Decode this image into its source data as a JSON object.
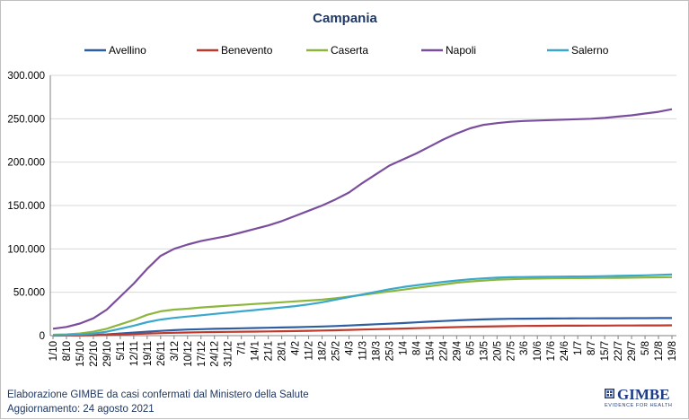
{
  "chart_data": {
    "type": "line",
    "title": "Campania",
    "xlabel": "",
    "ylabel": "",
    "ylim": [
      0,
      300000
    ],
    "y_ticks": [
      "0",
      "50.000",
      "100.000",
      "150.000",
      "200.000",
      "250.000",
      "300.000"
    ],
    "grid": "horizontal",
    "legend_position": "top",
    "categories": [
      "1/10",
      "8/10",
      "15/10",
      "22/10",
      "29/10",
      "5/11",
      "12/11",
      "19/11",
      "26/11",
      "3/12",
      "10/12",
      "17/12",
      "24/12",
      "31/12",
      "7/1",
      "14/1",
      "21/1",
      "28/1",
      "4/2",
      "11/2",
      "18/2",
      "25/2",
      "4/3",
      "11/3",
      "18/3",
      "25/3",
      "1/4",
      "8/4",
      "15/4",
      "22/4",
      "29/4",
      "6/5",
      "13/5",
      "20/5",
      "27/5",
      "3/6",
      "10/6",
      "17/6",
      "24/6",
      "1/7",
      "8/7",
      "15/7",
      "22/7",
      "29/7",
      "5/8",
      "12/8",
      "19/8"
    ],
    "series": [
      {
        "name": "Avellino",
        "color": "#2e5fa3",
        "values": [
          100,
          200,
          400,
          800,
          1500,
          2500,
          3500,
          4500,
          5500,
          6300,
          7000,
          7500,
          7900,
          8200,
          8500,
          8800,
          9100,
          9400,
          9700,
          10100,
          10600,
          11100,
          11700,
          12400,
          13100,
          13800,
          14500,
          15300,
          16100,
          16900,
          17600,
          18200,
          18700,
          19100,
          19400,
          19600,
          19700,
          19800,
          19900,
          19950,
          20000,
          20050,
          20100,
          20150,
          20200,
          20250,
          20300
        ]
      },
      {
        "name": "Benevento",
        "color": "#c0392b",
        "values": [
          50,
          100,
          200,
          400,
          800,
          1300,
          1900,
          2400,
          2900,
          3300,
          3600,
          3900,
          4100,
          4300,
          4500,
          4700,
          4900,
          5100,
          5300,
          5600,
          5900,
          6200,
          6600,
          7000,
          7400,
          7800,
          8200,
          8600,
          9000,
          9400,
          9800,
          10200,
          10500,
          10800,
          11000,
          11200,
          11300,
          11400,
          11450,
          11500,
          11550,
          11600,
          11650,
          11700,
          11750,
          11800,
          11850
        ]
      },
      {
        "name": "Caserta",
        "color": "#8cb63c",
        "values": [
          1000,
          1500,
          2500,
          4500,
          8000,
          13000,
          18000,
          24000,
          28000,
          30000,
          31000,
          32500,
          33500,
          34500,
          35500,
          36500,
          37500,
          38500,
          39500,
          40500,
          41500,
          43000,
          45000,
          47000,
          49000,
          51000,
          53000,
          55000,
          57000,
          59000,
          61000,
          62500,
          63500,
          64500,
          65000,
          65500,
          65800,
          66000,
          66200,
          66300,
          66400,
          66500,
          66600,
          66800,
          67000,
          67200,
          67500
        ]
      },
      {
        "name": "Napoli",
        "color": "#7a4e9c",
        "values": [
          8000,
          10000,
          14000,
          20000,
          30000,
          45000,
          60000,
          77000,
          92000,
          100000,
          105000,
          109000,
          112000,
          115000,
          119000,
          123000,
          127000,
          132000,
          138000,
          144000,
          150000,
          157000,
          165000,
          176000,
          186000,
          196000,
          203000,
          210000,
          218000,
          226000,
          233000,
          239000,
          243000,
          245000,
          246500,
          247500,
          248000,
          248500,
          249000,
          249500,
          250000,
          251000,
          252500,
          254000,
          256000,
          258000,
          261000
        ]
      },
      {
        "name": "Salerno",
        "color": "#3aa8cc",
        "values": [
          300,
          600,
          1200,
          2500,
          4500,
          8000,
          11500,
          15500,
          18500,
          20500,
          22000,
          23500,
          25000,
          26500,
          28000,
          29500,
          31000,
          32500,
          34000,
          36000,
          38500,
          41500,
          44500,
          47500,
          50500,
          53500,
          56000,
          58000,
          60000,
          62000,
          63500,
          65000,
          66000,
          66800,
          67300,
          67600,
          67800,
          68000,
          68100,
          68200,
          68300,
          68600,
          68900,
          69200,
          69500,
          70000,
          70500
        ]
      }
    ]
  },
  "footer": {
    "credit": "Elaborazione GIMBE da casi confermati dal Ministero della Salute",
    "updated": "Aggiornamento: 24 agosto 2021"
  },
  "logo": {
    "name": "GIMBE",
    "tagline": "EVIDENCE FOR HEALTH",
    "color": "#1f3c88"
  }
}
